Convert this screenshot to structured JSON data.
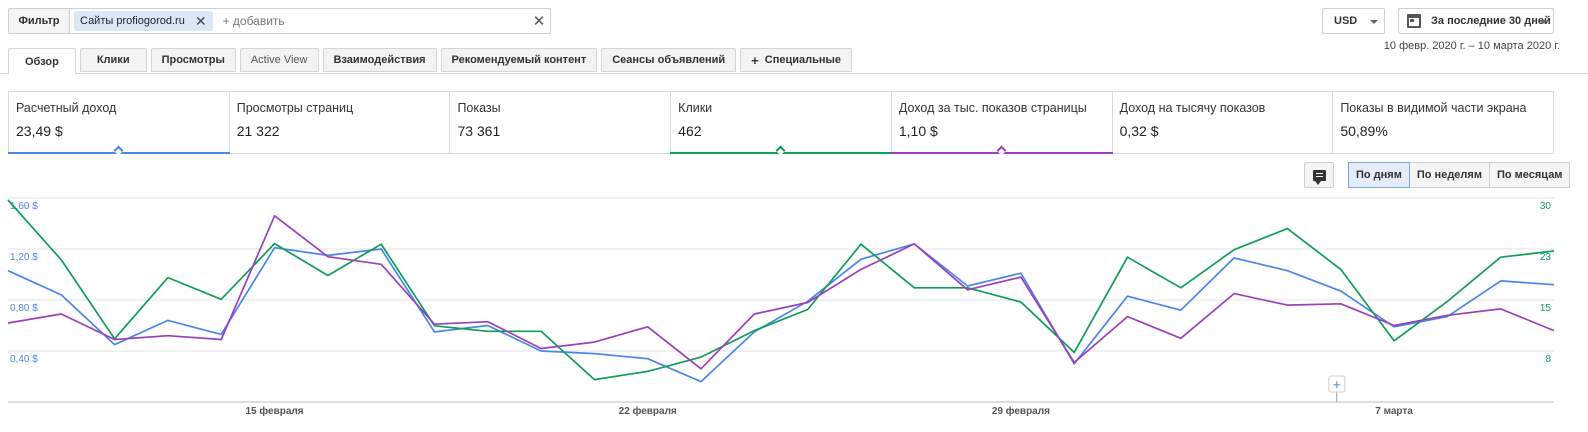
{
  "filter": {
    "button_label": "Фильтр",
    "chip_label": "Сайты profiogorod.ru",
    "add_placeholder": "+ добавить"
  },
  "currency": {
    "label": "USD"
  },
  "daterange": {
    "label": "За последние 30 дней",
    "sub": "10 февр. 2020 г. – 10 марта 2020 г."
  },
  "tabs": [
    {
      "label": "Обзор",
      "active": true
    },
    {
      "label": "Клики"
    },
    {
      "label": "Просмотры"
    },
    {
      "label": "Active View"
    },
    {
      "label": "Взаимодействия"
    },
    {
      "label": "Рекомендуемый контент"
    },
    {
      "label": "Сеансы объявлений"
    },
    {
      "label": "Специальные"
    }
  ],
  "metrics": [
    {
      "label": "Расчетный доход",
      "value": "23,49 $",
      "color": "#4a86e8"
    },
    {
      "label": "Просмотры страниц",
      "value": "21 322",
      "color": ""
    },
    {
      "label": "Показы",
      "value": "73 361",
      "color": ""
    },
    {
      "label": "Клики",
      "value": "462",
      "color": "#0f9d58"
    },
    {
      "label": "Доход за тыс. показов страницы",
      "value": "1,10 $",
      "color": "#9c3fbd"
    },
    {
      "label": "Доход на тысячу показов",
      "value": "0,32 $",
      "color": ""
    },
    {
      "label": "Показы в видимой части экрана",
      "value": "50,89%",
      "color": ""
    }
  ],
  "granularity": {
    "day": "По дням",
    "week": "По неделям",
    "month": "По месяцам",
    "selected": "day"
  },
  "icons": {
    "comment": "comment-icon",
    "calendar": "calendar-icon",
    "close": "close-icon",
    "plus": "plus-icon"
  },
  "chart_data": {
    "type": "line",
    "x": [
      "10.02",
      "11.02",
      "12.02",
      "13.02",
      "14.02",
      "15.02",
      "16.02",
      "17.02",
      "18.02",
      "19.02",
      "20.02",
      "21.02",
      "22.02",
      "23.02",
      "24.02",
      "25.02",
      "26.02",
      "27.02",
      "28.02",
      "29.02",
      "01.03",
      "02.03",
      "03.03",
      "04.03",
      "05.03",
      "06.03",
      "07.03",
      "08.03",
      "09.03",
      "10.03"
    ],
    "xticks": [
      "15 февраля",
      "22 февраля",
      "29 февраля",
      "7 марта"
    ],
    "left_axis": {
      "ticks": [
        "1,60 $",
        "1,20 $",
        "0,80 $",
        "0,40 $"
      ],
      "ylim": [
        0,
        1.6
      ]
    },
    "right_axis": {
      "ticks": [
        "30",
        "23",
        "15",
        "8"
      ],
      "ylim": [
        0,
        30
      ]
    },
    "series": [
      {
        "name": "Расчетный доход",
        "axis": "left",
        "color": "#4a86e8",
        "values": [
          1.03,
          0.84,
          0.45,
          0.64,
          0.53,
          1.21,
          1.15,
          1.2,
          0.55,
          0.6,
          0.4,
          0.38,
          0.34,
          0.16,
          0.55,
          0.79,
          1.12,
          1.24,
          0.91,
          1.01,
          0.3,
          0.83,
          0.72,
          1.13,
          1.03,
          0.87,
          0.59,
          0.67,
          0.95,
          0.92
        ]
      },
      {
        "name": "Клики",
        "axis": "right",
        "color": "#0f9d58",
        "values": [
          29.7,
          20.9,
          9.3,
          18.3,
          15.1,
          23.3,
          18.6,
          23.2,
          11.2,
          10.4,
          10.4,
          3.3,
          4.5,
          6.6,
          10.5,
          13.6,
          23.2,
          16.8,
          16.8,
          14.7,
          7.3,
          21.3,
          16.8,
          22.4,
          25.5,
          19.5,
          9.0,
          14.8,
          21.3,
          22.2
        ]
      },
      {
        "name": "Доход за тыс. показов страницы",
        "axis": "left",
        "color": "#9c3fbd",
        "values": [
          0.62,
          0.69,
          0.49,
          0.52,
          0.49,
          1.46,
          1.14,
          1.08,
          0.61,
          0.63,
          0.42,
          0.47,
          0.59,
          0.26,
          0.69,
          0.78,
          1.04,
          1.24,
          0.88,
          0.98,
          0.31,
          0.67,
          0.5,
          0.85,
          0.76,
          0.77,
          0.6,
          0.68,
          0.73,
          0.56
        ]
      }
    ]
  }
}
